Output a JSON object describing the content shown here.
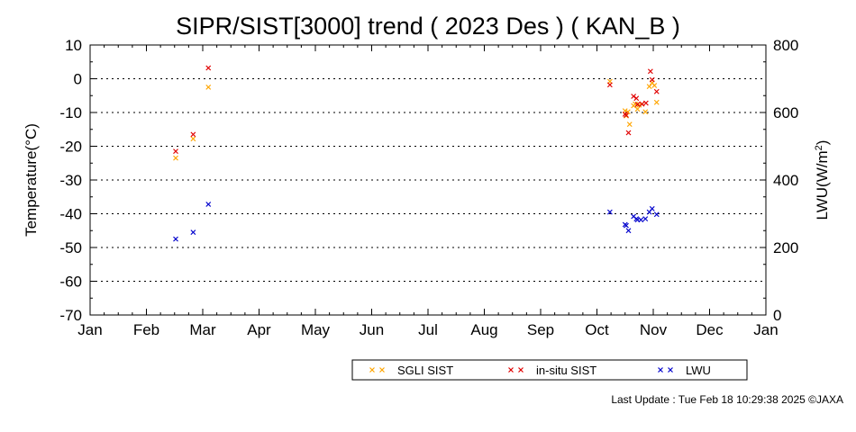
{
  "chart_data": {
    "type": "scatter",
    "title": "SIPR/SIST[3000] trend ( 2023 Des ) ( KAN_B )",
    "xlabel": "",
    "ylabel": "Temperature(°C)",
    "y2label_main": "LWU(W/m",
    "y2label_sup": "2",
    "y2label_end": ")",
    "x_ticks": [
      "Jan",
      "Feb",
      "Mar",
      "Apr",
      "May",
      "Jun",
      "Jul",
      "Aug",
      "Sep",
      "Oct",
      "Nov",
      "Dec",
      "Jan"
    ],
    "xlim": [
      0,
      12
    ],
    "ylim": [
      -70,
      10
    ],
    "y_ticks": [
      10,
      0,
      -10,
      -20,
      -30,
      -40,
      -50,
      -60,
      -70
    ],
    "y2lim": [
      0,
      800
    ],
    "y2_ticks": [
      800,
      600,
      400,
      200,
      0
    ],
    "grid": "horizontal dotted",
    "legend_position": "bottom",
    "series": [
      {
        "name": "SGLI SIST",
        "color": "#ffa500",
        "axis": "left",
        "x": [
          1.52,
          1.83,
          2.1,
          9.23,
          9.5,
          9.52,
          9.55,
          9.58,
          9.65,
          9.68,
          9.72,
          9.75,
          9.8,
          9.86,
          9.93,
          9.98,
          10.02,
          10.06
        ],
        "y": [
          -23.5,
          -17.8,
          -2.5,
          -0.8,
          -9.5,
          -11.0,
          -9.8,
          -13.5,
          -8.0,
          -7.5,
          -9.0,
          -7.8,
          -7.5,
          -9.8,
          -2.3,
          -1.2,
          -2.0,
          -7.0
        ]
      },
      {
        "name": "in-situ SIST",
        "color": "#e00000",
        "axis": "left",
        "x": [
          1.52,
          1.83,
          2.1,
          9.23,
          9.5,
          9.52,
          9.56,
          9.65,
          9.7,
          9.72,
          9.8,
          9.87,
          9.95,
          9.98,
          10.06
        ],
        "y": [
          -21.5,
          -16.5,
          3.2,
          -1.8,
          -10.5,
          -10.8,
          -16.0,
          -5.2,
          -5.8,
          -7.6,
          -7.5,
          -7.2,
          2.2,
          -0.3,
          -3.8
        ]
      },
      {
        "name": "LWU",
        "color": "#0000cc",
        "axis": "right",
        "x": [
          1.52,
          1.83,
          2.1,
          9.23,
          9.5,
          9.52,
          9.56,
          9.65,
          9.7,
          9.72,
          9.78,
          9.86,
          9.93,
          9.98,
          10.06
        ],
        "y": [
          225,
          245,
          328,
          305,
          268,
          265,
          250,
          292,
          285,
          282,
          282,
          285,
          305,
          315,
          298
        ]
      }
    ]
  },
  "footer": {
    "last_update": "Last Update : Tue Feb 18 10:29:38 2025  ©JAXA"
  }
}
